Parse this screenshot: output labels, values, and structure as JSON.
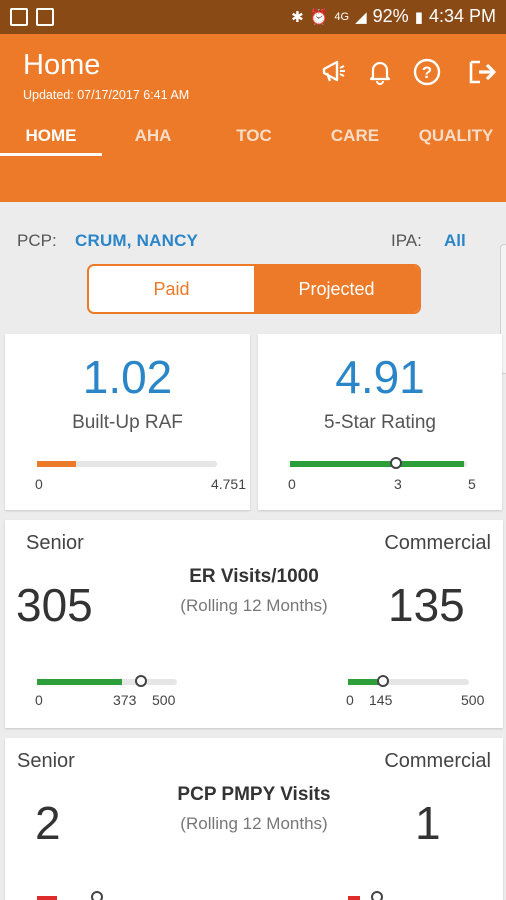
{
  "status_bar": {
    "battery": "92%",
    "time": "4:34 PM",
    "network": "4G"
  },
  "header": {
    "title": "Home",
    "updated": "Updated: 07/17/2017 6:41 AM",
    "icons": [
      "announce-icon",
      "bell-icon",
      "help-icon",
      "logout-icon"
    ]
  },
  "tabs": [
    {
      "label": "HOME",
      "active": true
    },
    {
      "label": "AHA",
      "active": false
    },
    {
      "label": "TOC",
      "active": false
    },
    {
      "label": "CARE",
      "active": false
    },
    {
      "label": "QUALITY",
      "active": false
    }
  ],
  "filters": {
    "pcp_label": "PCP:",
    "pcp_value": "CRUM, NANCY",
    "ipa_label": "IPA:",
    "ipa_value": "All"
  },
  "toggle": {
    "paid": "Paid",
    "projected": "Projected",
    "selected": "Projected"
  },
  "raf_card": {
    "value": "1.02",
    "label": "Built-Up RAF",
    "min": "0",
    "max": "4.751",
    "fraction": 0.215,
    "color": "#ec7a28"
  },
  "star_card": {
    "value": "4.91",
    "label": "5-Star Rating",
    "min": "0",
    "mid": "3",
    "max": "5",
    "fraction": 0.982,
    "marker_fraction": 0.6,
    "color": "#2e9e3a"
  },
  "er_card": {
    "senior_label": "Senior",
    "commercial_label": "Commercial",
    "title": "ER Visits/1000",
    "subtitle": "(Rolling 12 Months)",
    "senior_value": "305",
    "commercial_value": "135",
    "senior_bar": {
      "min": "0",
      "marker": "373",
      "max": "500",
      "fraction": 0.61,
      "marker_fraction": 0.746
    },
    "commercial_bar": {
      "min": "0",
      "marker": "145",
      "max": "500",
      "fraction": 0.27,
      "marker_fraction": 0.29
    }
  },
  "pcp_card": {
    "senior_label": "Senior",
    "commercial_label": "Commercial",
    "title": "PCP PMPY Visits",
    "subtitle": "(Rolling 12 Months)",
    "senior_value": "2",
    "commercial_value": "1"
  }
}
